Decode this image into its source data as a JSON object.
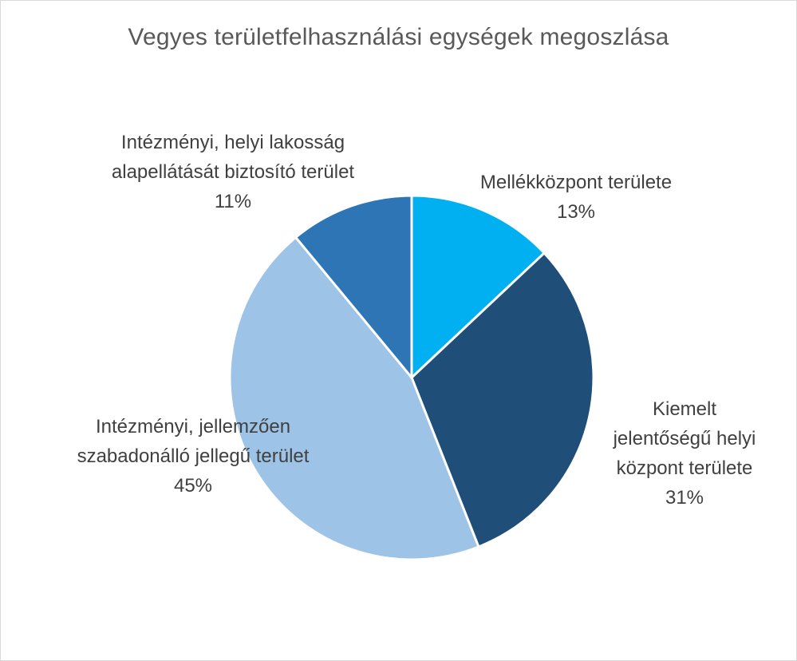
{
  "chart_data": {
    "type": "pie",
    "title": "Vegyes területfelhasználási egységek megoszlása",
    "slices": [
      {
        "label_lines": [
          "Mellékközpont területe"
        ],
        "percent_label": "13%",
        "value": 13,
        "color": "#00b0f0"
      },
      {
        "label_lines": [
          "Kiemelt",
          "jelentőségű helyi",
          "központ területe"
        ],
        "percent_label": "31%",
        "value": 31,
        "color": "#1f4e79"
      },
      {
        "label_lines": [
          "Intézményi, jellemzően",
          "szabadonálló jellegű terület"
        ],
        "percent_label": "45%",
        "value": 45,
        "color": "#9dc3e6"
      },
      {
        "label_lines": [
          "Intézményi, helyi lakosság",
          "alapellátását biztosító terület"
        ],
        "percent_label": "11%",
        "value": 11,
        "color": "#2e75b6"
      }
    ],
    "start": "12 o'clock, clockwise",
    "legend": "none",
    "slice_border_color": "#ffffff"
  }
}
